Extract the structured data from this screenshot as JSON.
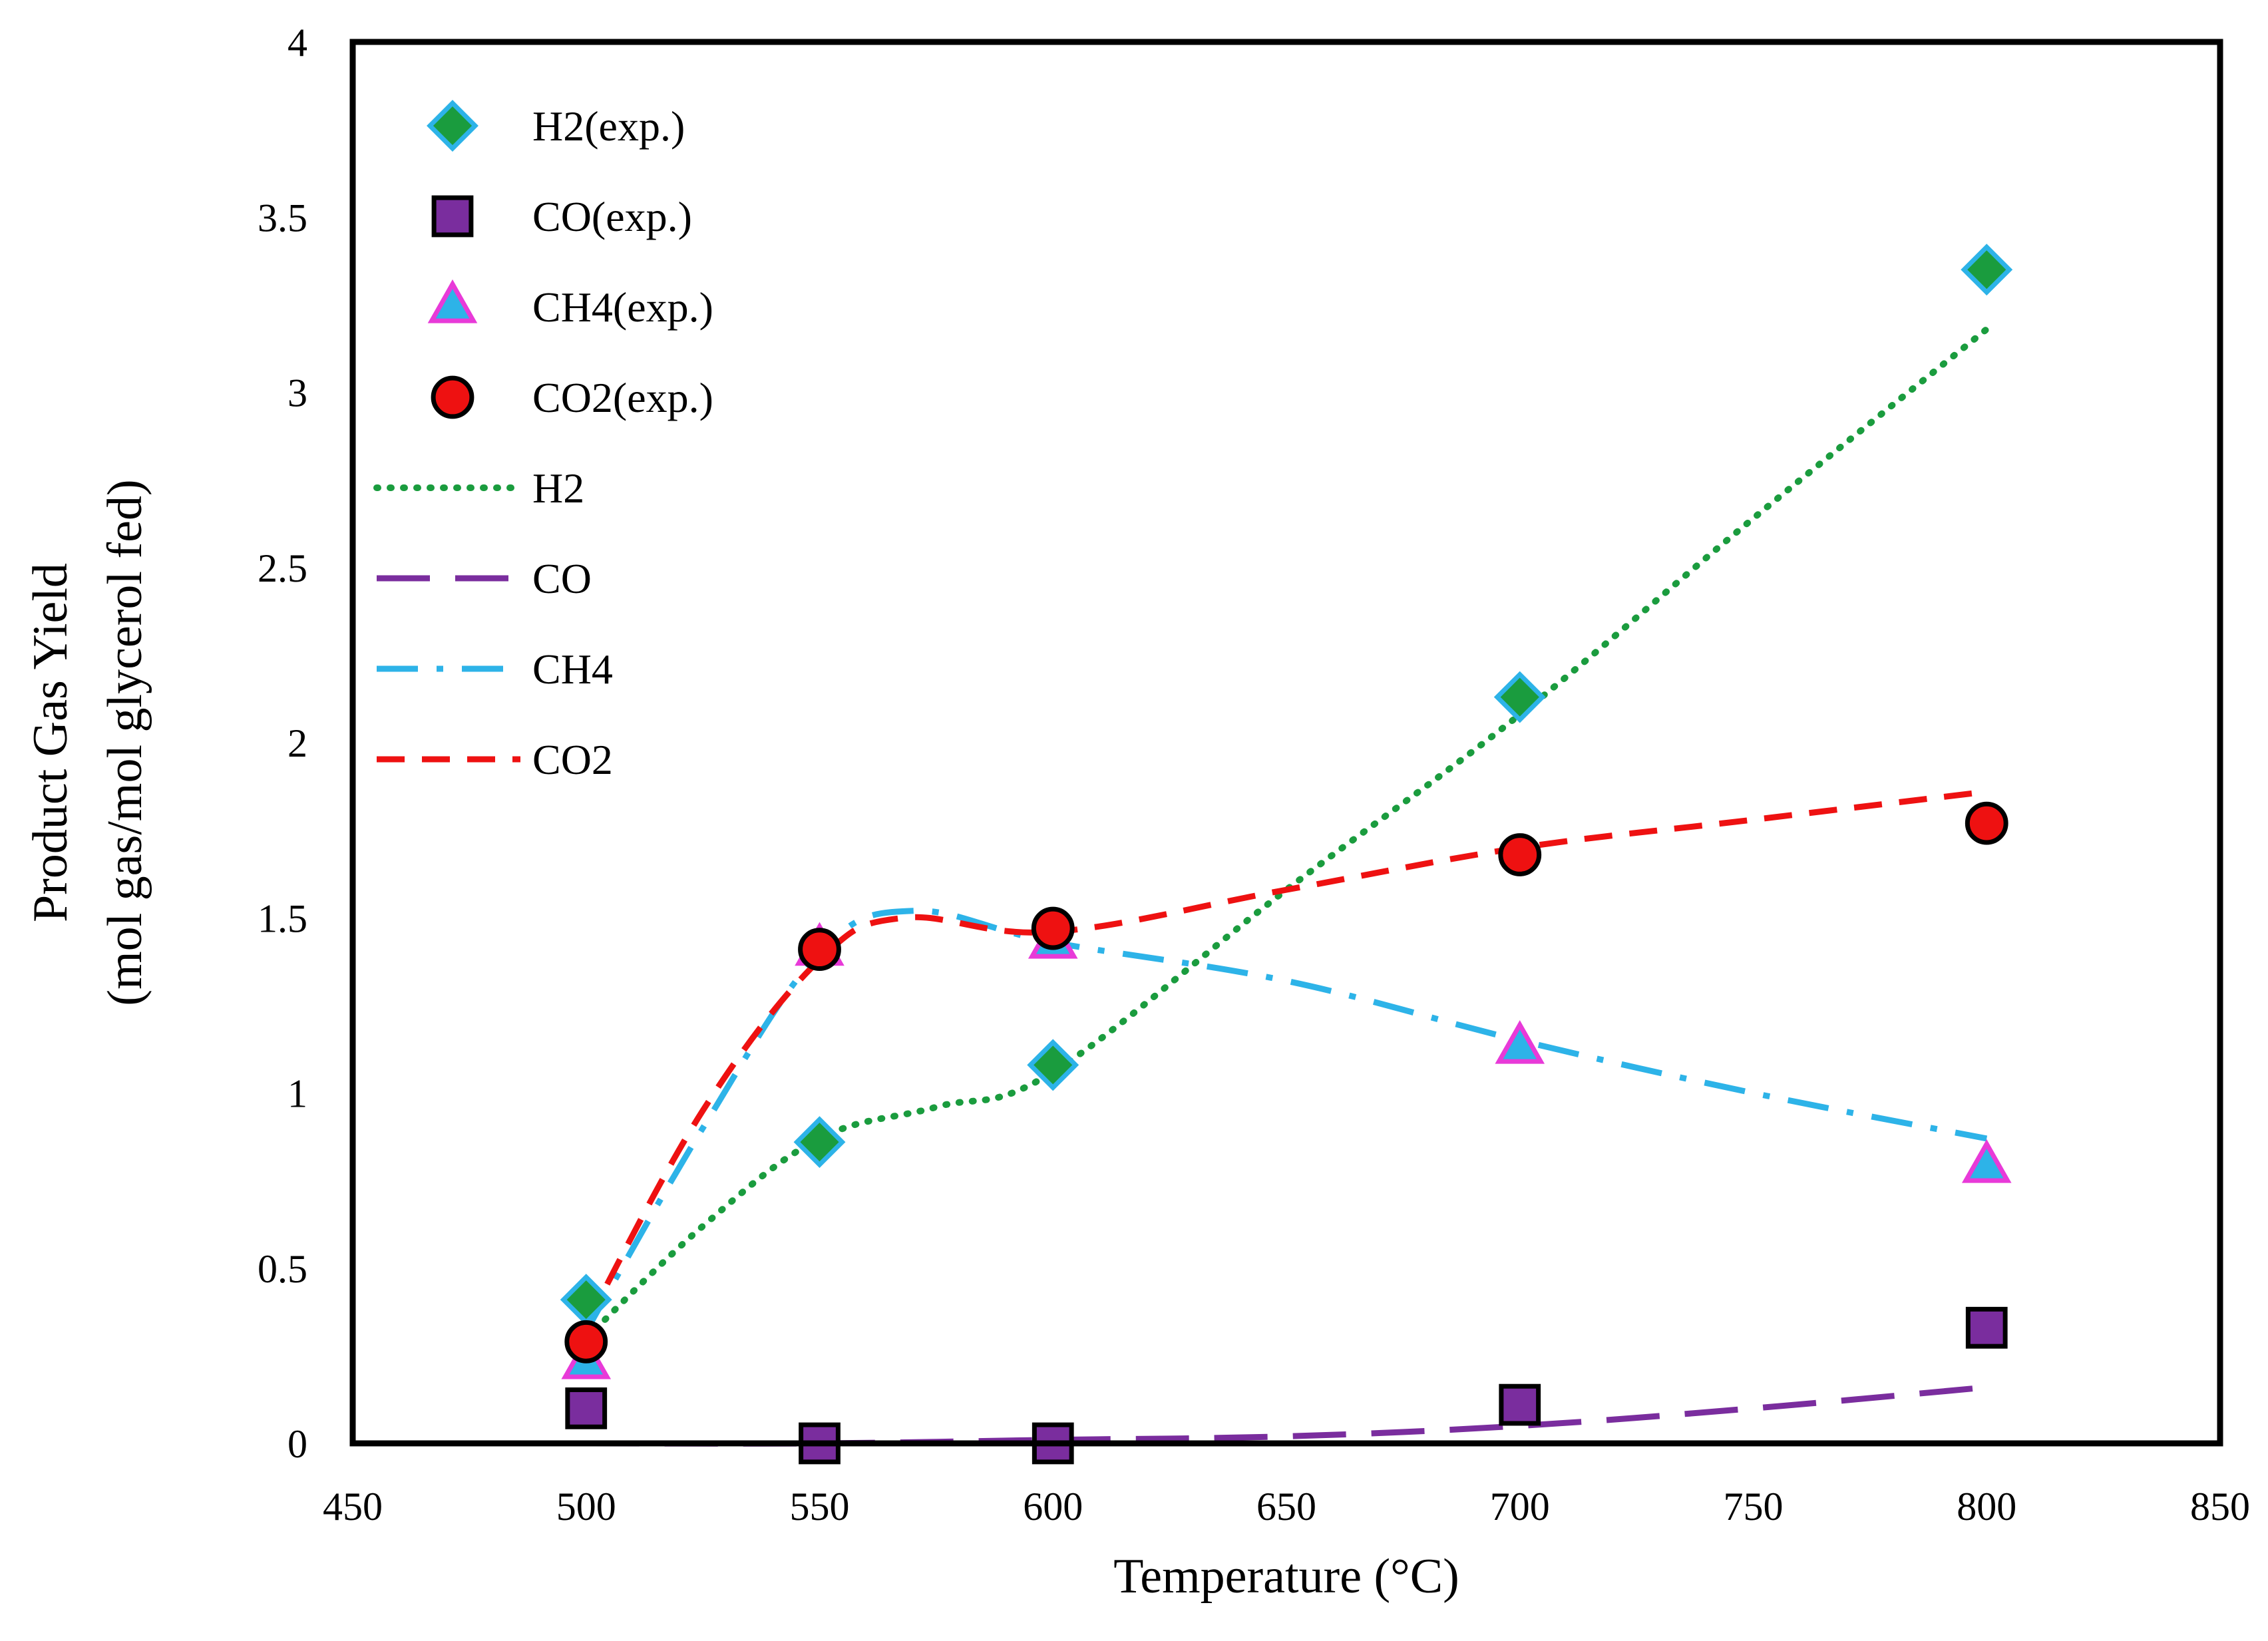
{
  "chart_data": {
    "type": "scatter",
    "title": "",
    "xlabel": "Temperature (°C)",
    "ylabel_lines": [
      "Product Gas Yield",
      "(mol gas/mol glycerol fed)"
    ],
    "xlim": [
      450,
      850
    ],
    "ylim": [
      0,
      4
    ],
    "xticks": [
      450,
      500,
      550,
      600,
      650,
      700,
      750,
      800,
      850
    ],
    "yticks": [
      0,
      0.5,
      1,
      1.5,
      2,
      2.5,
      3,
      3.5,
      4
    ],
    "grid": false,
    "legend_position": "top-left",
    "experimental": [
      {
        "name": "H2(exp.)",
        "marker": "diamond",
        "fill": "#1a9c3e",
        "stroke": "#2db3e8",
        "x": [
          500,
          550,
          600,
          700,
          800
        ],
        "y": [
          0.41,
          0.86,
          1.08,
          2.13,
          3.35
        ]
      },
      {
        "name": "CO(exp.)",
        "marker": "square",
        "fill": "#7a2d9e",
        "stroke": "#000000",
        "x": [
          500,
          550,
          600,
          700,
          800
        ],
        "y": [
          0.1,
          0.0,
          0.0,
          0.11,
          0.33
        ]
      },
      {
        "name": "CH4(exp.)",
        "marker": "triangle",
        "fill": "#2db3e8",
        "stroke": "#e83ad8",
        "x": [
          500,
          550,
          600,
          700,
          800
        ],
        "y": [
          0.23,
          1.41,
          1.43,
          1.13,
          0.79
        ]
      },
      {
        "name": "CO2(exp.)",
        "marker": "circle",
        "fill": "#ee1111",
        "stroke": "#000000",
        "x": [
          500,
          550,
          600,
          700,
          800
        ],
        "y": [
          0.29,
          1.41,
          1.47,
          1.68,
          1.77
        ]
      }
    ],
    "model": [
      {
        "name": "H2",
        "style": "dotted",
        "color": "#1a9c3e",
        "x": [
          500,
          525,
          550,
          575,
          600,
          650,
          700,
          750,
          800
        ],
        "y": [
          0.3,
          0.62,
          0.87,
          0.96,
          1.06,
          1.58,
          2.08,
          2.64,
          3.18
        ]
      },
      {
        "name": "CO",
        "style": "longdash",
        "color": "#7a2d9e",
        "x": [
          500,
          550,
          600,
          650,
          700,
          750,
          800
        ],
        "y": [
          0.0,
          0.0,
          0.01,
          0.02,
          0.05,
          0.1,
          0.16
        ]
      },
      {
        "name": "CH4",
        "style": "dashdot",
        "color": "#2db3e8",
        "x": [
          500,
          525,
          550,
          570,
          600,
          650,
          700,
          750,
          800
        ],
        "y": [
          0.32,
          0.9,
          1.4,
          1.52,
          1.43,
          1.32,
          1.15,
          1.0,
          0.87
        ]
      },
      {
        "name": "CO2",
        "style": "dashed",
        "color": "#ee1111",
        "x": [
          500,
          525,
          550,
          568,
          600,
          650,
          700,
          750,
          800
        ],
        "y": [
          0.34,
          0.95,
          1.38,
          1.5,
          1.46,
          1.58,
          1.7,
          1.78,
          1.86
        ]
      }
    ]
  }
}
